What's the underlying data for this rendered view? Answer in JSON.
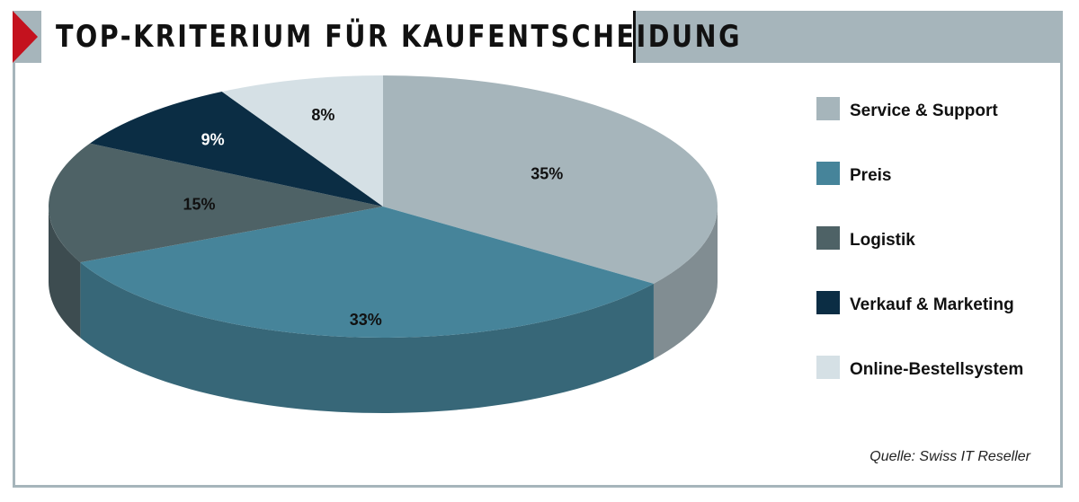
{
  "title": "TOP-KRITERIUM FÜR KAUFENTSCHEIDUNG",
  "source": "Quelle: Swiss IT Reseller",
  "colors": {
    "accent_red": "#c4121e",
    "header_gray": "#a6b5bb"
  },
  "chart_data": {
    "type": "pie",
    "style": "3d",
    "legend_position": "right",
    "slices": [
      {
        "name": "Service & Support",
        "value": 35,
        "label": "35%",
        "color": "#a6b5bb"
      },
      {
        "name": "Preis",
        "value": 33,
        "label": "33%",
        "color": "#46849a"
      },
      {
        "name": "Logistik",
        "value": 15,
        "label": "15%",
        "color": "#4e6266"
      },
      {
        "name": "Verkauf & Marketing",
        "value": 9,
        "label": "9%",
        "color": "#0b2d44"
      },
      {
        "name": "Online-Bestellsystem",
        "value": 8,
        "label": "8%",
        "color": "#d5e0e5"
      }
    ]
  }
}
